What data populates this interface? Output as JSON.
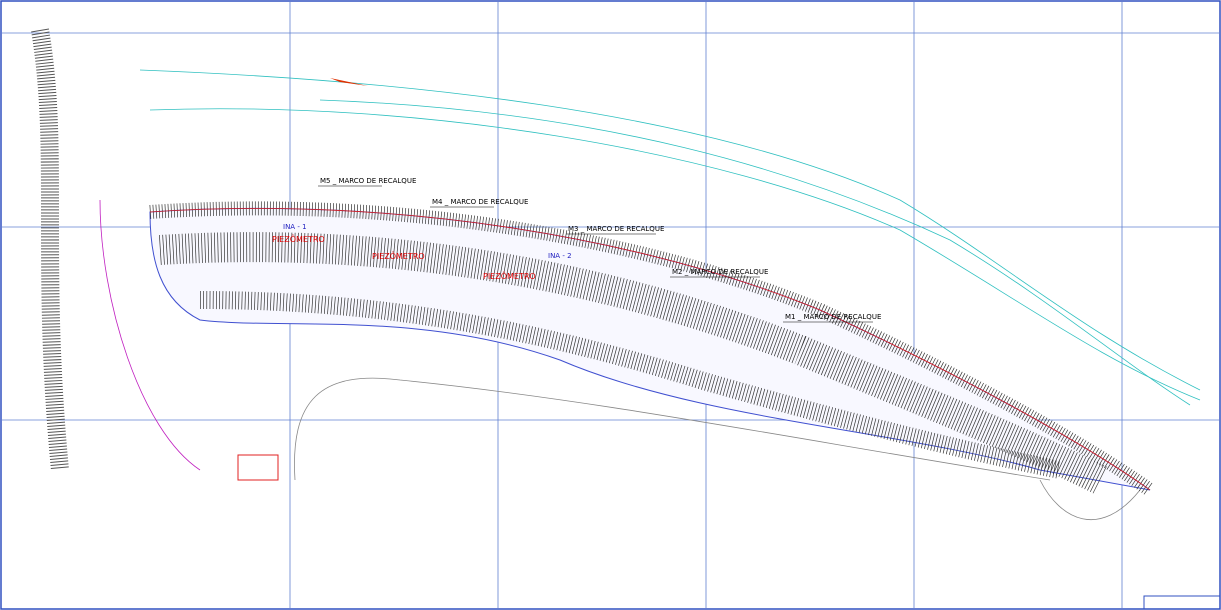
{
  "markers": [
    {
      "label": "M5 _ MARCO DE RECALQUE"
    },
    {
      "label": "M4 _ MARCO DE RECALQUE"
    },
    {
      "label": "M3 _ MARCO DE RECALQUE"
    },
    {
      "label": "M2 _ MARCO DE RECALQUE"
    },
    {
      "label": "M1 _ MARCO DE RECALQUE"
    }
  ],
  "piezometers": [
    "PIEZÔMETRO",
    "PIEZÔMETRO",
    "PIEZÔMETRO"
  ],
  "instruments": [
    "INA - 1",
    "INA - 2"
  ]
}
